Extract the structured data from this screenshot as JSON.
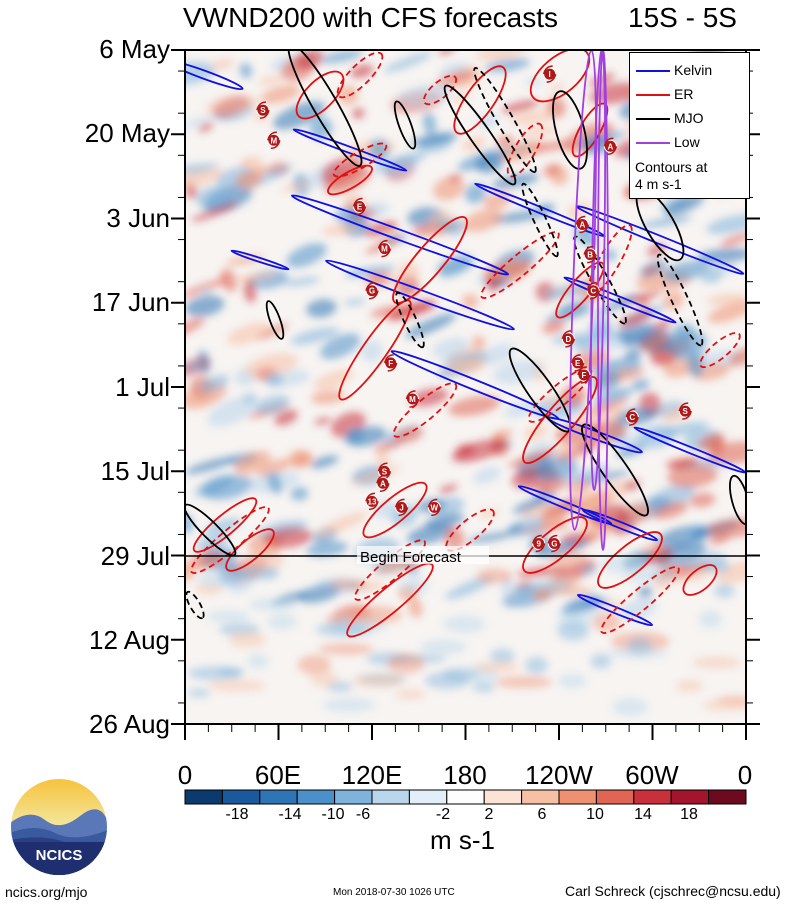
{
  "title": {
    "left": "VWND200 with CFS forecasts",
    "right": "15S - 5S"
  },
  "forecast_label": "Begin Forecast",
  "legend": {
    "items": [
      {
        "label": "Kelvin",
        "color": "#1010e0"
      },
      {
        "label": "ER",
        "color": "#e01010"
      },
      {
        "label": "MJO",
        "color": "#000000"
      },
      {
        "label": "Low",
        "color": "#a040e0"
      }
    ],
    "note_line1": "Contours at",
    "note_line2": "4 m s-1"
  },
  "colorbar": {
    "labels": [
      "-18",
      "-14",
      "-10",
      "-6",
      "-2",
      "2",
      "6",
      "10",
      "14",
      "18"
    ],
    "colors": [
      "#0a3a6e",
      "#1a5a9c",
      "#2f74b5",
      "#4b90c8",
      "#80b3db",
      "#b9d6ec",
      "#e2eef8",
      "#fdfdfd",
      "#fbe4d6",
      "#f7c0a4",
      "#ef9171",
      "#e06552",
      "#c8303b",
      "#a3142d",
      "#6e0a1e"
    ],
    "units": "m s-1"
  },
  "footer": {
    "left": "ncics.org/mjo",
    "mid": "Mon 2018-07-30 1026 UTC",
    "right": "Carl Schreck (cjschrec@ncsu.edu)"
  },
  "logo_text": "NCICS",
  "chart_data": {
    "type": "heatmap",
    "title": "VWND200 with CFS forecasts",
    "subtitle": "15S - 5S",
    "x_ticks": [
      "0",
      "60E",
      "120E",
      "180",
      "120W",
      "60W",
      "0"
    ],
    "y_ticks": [
      "6 May",
      "20 May",
      "3 Jun",
      "17 Jun",
      "1 Jul",
      "15 Jul",
      "29 Jul",
      "12 Aug",
      "26 Aug"
    ],
    "forecast_start": "29 Jul",
    "units": "m s-1",
    "contour_interval": "4 m s-1",
    "series": [
      {
        "name": "Kelvin",
        "color": "#1010e0"
      },
      {
        "name": "ER",
        "color": "#e01010"
      },
      {
        "name": "MJO",
        "color": "#000000"
      },
      {
        "name": "Low",
        "color": "#a040e0"
      }
    ],
    "storm_markers": [
      {
        "label": "S",
        "lon": 50,
        "date": "16 May"
      },
      {
        "label": "M",
        "lon": 57,
        "date": "21 May"
      },
      {
        "label": "E",
        "lon": 112,
        "date": "1 Jun"
      },
      {
        "label": "M",
        "lon": 128,
        "date": "8 Jun"
      },
      {
        "label": "G",
        "lon": 120,
        "date": "15 Jun"
      },
      {
        "label": "F",
        "lon": 132,
        "date": "27 Jun"
      },
      {
        "label": "M",
        "lon": 146,
        "date": "3 Jul"
      },
      {
        "label": "S",
        "lon": 128,
        "date": "15 Jul"
      },
      {
        "label": "A",
        "lon": 127,
        "date": "17 Jul"
      },
      {
        "label": "13",
        "lon": 120,
        "date": "20 Jul"
      },
      {
        "label": "J",
        "lon": 139,
        "date": "21 Jul"
      },
      {
        "label": "W",
        "lon": 160,
        "date": "21 Jul"
      },
      {
        "label": "9",
        "lon": 227,
        "date": "27 Jul"
      },
      {
        "label": "G",
        "lon": 237,
        "date": "27 Jul"
      },
      {
        "label": "I",
        "lon": 234,
        "date": "10 May"
      },
      {
        "label": "A",
        "lon": 273,
        "date": "22 May"
      },
      {
        "label": "A",
        "lon": 255,
        "date": "4 Jun"
      },
      {
        "label": "B",
        "lon": 260,
        "date": "9 Jun"
      },
      {
        "label": "C",
        "lon": 262,
        "date": "15 Jun"
      },
      {
        "label": "D",
        "lon": 246,
        "date": "23 Jun"
      },
      {
        "label": "E",
        "lon": 252,
        "date": "27 Jun"
      },
      {
        "label": "F",
        "lon": 256,
        "date": "29 Jun"
      },
      {
        "label": "C",
        "lon": 287,
        "date": "6 Jul"
      },
      {
        "label": "S",
        "lon": 321,
        "date": "5 Jul"
      }
    ],
    "grid": false,
    "legend_position": "top-right"
  }
}
